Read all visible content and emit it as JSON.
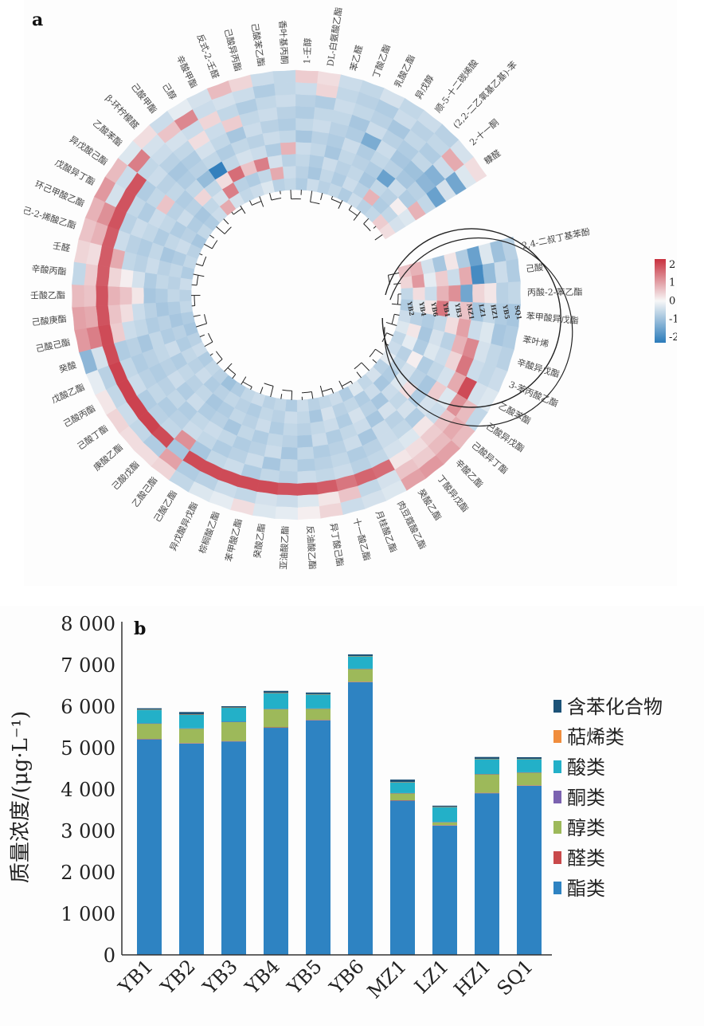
{
  "chart_data": [
    {
      "panel": "a",
      "type": "heatmap",
      "layout": "circular",
      "title": "",
      "samples_inner_to_outer": [
        "YB2",
        "YB4",
        "YB6",
        "YB1",
        "YB3",
        "MZ1",
        "LZ1",
        "HZ1",
        "YB5",
        "SQ1"
      ],
      "rows_clockwise": [
        "2,4-二叔丁基苯酚",
        "己酸",
        "丙酸-2-苯乙酯",
        "苯甲酸异戊酯",
        "苯叶烯",
        "辛酸异戊酯",
        "3-苯丙酸乙酯",
        "乙酸苯酯",
        "己酸异戊酯",
        "己酸异丁酯",
        "辛酸乙酯",
        "丁酸异戊酯",
        "癸酸乙酯",
        "肉豆蔻酸乙酯",
        "月桂酸乙酯",
        "十一酸乙酯",
        "异丁酸己酯",
        "反油酸乙酯",
        "亚油酸乙酯",
        "癸酸乙酯",
        "苯甲酸乙酯",
        "棕榈酸乙酯",
        "异戊酸异戊酯",
        "己酸乙酯",
        "乙酸己酯",
        "己酸戊酯",
        "庚酸乙酯",
        "己酸丁酯",
        "己酸丙酯",
        "戊酸乙酯",
        "癸酸",
        "己酸己酯",
        "己酸庚酯",
        "壬酸乙酯",
        "辛酸丙酯",
        "壬醛",
        "己-2-烯酸乙酯",
        "环己甲酸乙酯",
        "戊酸异丁酯",
        "异戊酸己酯",
        "乙酸苯酯",
        "β-环柠檬醛",
        "己酸甲酯",
        "己醇",
        "辛酸甲酯",
        "反式-2-壬醛",
        "己酸异丙酯",
        "己酸苯乙酯",
        "香叶基丙酮",
        "1-壬醇",
        "DL-白氨酸乙酯",
        "苯乙醛",
        "丁酸乙酯",
        "乳酸乙酯",
        "异戊醇",
        "顺-5-十二碳烯酸",
        "(2,2-二乙氧基乙基)-苯",
        "2-十一酮",
        "糠醛"
      ],
      "colorbar": {
        "ticks": [
          2,
          1,
          0,
          -1,
          -2
        ],
        "range": [
          -2.3,
          2.3
        ],
        "low_color": "#2b7bba",
        "mid_color": "#f7f7f7",
        "high_color": "#c8313f"
      },
      "dendrogram": "hierarchical clustering of compounds (inner ring)"
    },
    {
      "panel": "b",
      "type": "bar",
      "stacked": true,
      "title": "",
      "xlabel": "",
      "ylabel": "质量浓度/(μg·L⁻¹)",
      "ylim": [
        0,
        8000
      ],
      "yticks": [
        0,
        1000,
        2000,
        3000,
        4000,
        5000,
        6000,
        7000,
        8000
      ],
      "ytick_labels": [
        "0",
        "1 000",
        "2 000",
        "3 000",
        "4 000",
        "5 000",
        "6 000",
        "7 000",
        "8 000"
      ],
      "categories": [
        "YB1",
        "YB2",
        "YB3",
        "YB4",
        "YB5",
        "YB6",
        "MZ1",
        "LZ1",
        "HZ1",
        "SQ1"
      ],
      "legend_position": "right",
      "series": [
        {
          "name": "酯类",
          "color": "#2e83c2",
          "values": [
            5200,
            5100,
            5150,
            5480,
            5660,
            6580,
            3720,
            3120,
            3900,
            4080
          ]
        },
        {
          "name": "醛类",
          "color": "#c9494b",
          "values": [
            10,
            10,
            10,
            10,
            10,
            10,
            10,
            10,
            10,
            10
          ]
        },
        {
          "name": "醇类",
          "color": "#9db95a",
          "values": [
            370,
            350,
            460,
            440,
            270,
            310,
            170,
            70,
            450,
            310
          ]
        },
        {
          "name": "酮类",
          "color": "#7b62b0",
          "values": [
            5,
            5,
            5,
            5,
            5,
            5,
            5,
            5,
            5,
            5
          ]
        },
        {
          "name": "酸类",
          "color": "#23b0c8",
          "values": [
            330,
            330,
            340,
            380,
            340,
            300,
            260,
            360,
            360,
            320
          ]
        },
        {
          "name": "萜烯类",
          "color": "#f08d3d",
          "values": [
            5,
            5,
            5,
            5,
            5,
            5,
            5,
            5,
            5,
            5
          ]
        },
        {
          "name": "含苯化合物",
          "color": "#1c5277",
          "values": [
            30,
            60,
            30,
            50,
            40,
            40,
            60,
            30,
            45,
            40
          ]
        }
      ],
      "legend_order": [
        "含苯化合物",
        "萜烯类",
        "酸类",
        "酮类",
        "醇类",
        "醛类",
        "酯类"
      ]
    }
  ],
  "panels": {
    "a_letter": "a",
    "b_letter": "b"
  },
  "heatmap_values": [
    [
      0.6,
      0.8,
      -0.4,
      -0.9,
      0.2,
      -0.8,
      -1.6,
      -0.3,
      -1.0,
      -0.7
    ],
    [
      0.4,
      1.1,
      -0.2,
      0.5,
      -0.5,
      0.9,
      -2.0,
      -1.1,
      -0.5,
      -0.8
    ],
    [
      -0.6,
      0.3,
      -0.5,
      0.8,
      1.2,
      -1.5,
      0.4,
      0.2,
      -0.7,
      -0.6
    ],
    [
      -0.8,
      -0.3,
      0.2,
      1.5,
      -0.4,
      0.6,
      -0.9,
      -0.6,
      -0.8,
      -0.9
    ],
    [
      -0.5,
      -0.7,
      -0.8,
      -0.6,
      0.3,
      1.0,
      -0.5,
      -0.3,
      -0.9,
      -0.8
    ],
    [
      -0.3,
      0.2,
      -0.9,
      -0.4,
      -0.7,
      0.8,
      1.3,
      -0.4,
      -0.6,
      -0.7
    ],
    [
      -0.6,
      -0.2,
      -0.8,
      -0.3,
      -0.5,
      0.4,
      1.5,
      -0.5,
      -0.6,
      -0.5
    ],
    [
      -0.5,
      -0.7,
      0.1,
      -0.8,
      -0.6,
      -0.4,
      0.9,
      2.0,
      -0.4,
      -0.3
    ],
    [
      -0.2,
      -0.6,
      -0.4,
      -0.7,
      -0.9,
      0.5,
      -0.3,
      1.2,
      0.7,
      -0.6
    ],
    [
      -0.7,
      -0.8,
      -0.3,
      0.3,
      -0.8,
      -0.4,
      -0.5,
      0.6,
      0.9,
      0.7
    ],
    [
      -0.4,
      -0.9,
      -0.5,
      -0.6,
      -0.4,
      -0.8,
      0.2,
      0.5,
      0.7,
      1.0
    ],
    [
      -0.6,
      -0.5,
      -0.9,
      -0.4,
      -0.7,
      -0.6,
      -0.3,
      0.3,
      0.5,
      1.1
    ],
    [
      -0.3,
      -0.8,
      -0.7,
      -0.9,
      -0.5,
      -0.5,
      -0.4,
      0.2,
      0.6,
      1.0
    ],
    [
      -0.8,
      -0.6,
      -0.4,
      -0.5,
      -0.9,
      -0.7,
      -0.6,
      1.6,
      -0.4,
      -0.3
    ],
    [
      -0.5,
      -0.7,
      -0.8,
      -0.6,
      -0.5,
      -0.8,
      -0.7,
      1.7,
      -0.6,
      -0.4
    ],
    [
      -0.6,
      -0.4,
      -0.5,
      -0.8,
      -0.7,
      -0.6,
      -0.5,
      1.5,
      0.6,
      -0.5
    ],
    [
      -0.7,
      -0.9,
      -0.6,
      -0.5,
      -0.8,
      -0.7,
      -0.6,
      1.8,
      0.2,
      0.4
    ],
    [
      -0.5,
      -0.6,
      -0.7,
      -0.9,
      -0.6,
      -0.8,
      -0.5,
      1.9,
      -0.3,
      0.1
    ],
    [
      -0.8,
      -0.5,
      -0.6,
      -0.7,
      -0.9,
      -0.6,
      -0.7,
      1.9,
      -0.5,
      -0.2
    ],
    [
      -0.6,
      -0.7,
      -0.8,
      -0.6,
      -0.5,
      -0.9,
      -0.6,
      2.0,
      -0.4,
      -0.3
    ],
    [
      -0.7,
      -0.6,
      -0.5,
      -0.8,
      -0.7,
      -0.5,
      -0.8,
      2.0,
      -0.6,
      0.3
    ],
    [
      -0.5,
      -0.8,
      -0.7,
      -0.6,
      -0.8,
      -0.7,
      -0.5,
      2.0,
      -0.5,
      -0.2
    ],
    [
      -0.6,
      -0.7,
      -0.6,
      -0.9,
      -0.6,
      -0.8,
      -0.6,
      2.0,
      -0.7,
      -0.3
    ],
    [
      -0.8,
      -0.6,
      -0.8,
      -0.7,
      -0.5,
      -0.6,
      -0.9,
      2.0,
      -0.8,
      -0.6
    ],
    [
      -1.0,
      -0.7,
      -0.9,
      -0.8,
      -0.6,
      -0.5,
      1.2,
      -0.9,
      1.0,
      0.4
    ],
    [
      -0.7,
      -0.8,
      -0.6,
      -0.5,
      -0.8,
      -0.7,
      -0.6,
      2.0,
      -0.8,
      0.3
    ],
    [
      -0.6,
      -0.5,
      -0.7,
      -0.8,
      -0.6,
      -0.8,
      -0.7,
      2.1,
      -0.6,
      0.3
    ],
    [
      -0.8,
      -0.7,
      -0.6,
      -0.5,
      -0.7,
      -0.6,
      -0.8,
      2.1,
      -0.5,
      0.4
    ],
    [
      -0.5,
      -0.6,
      -0.8,
      -0.7,
      -0.8,
      -0.7,
      -0.5,
      2.1,
      -0.6,
      0.2
    ],
    [
      -0.7,
      -0.8,
      -0.5,
      -0.6,
      -0.7,
      -0.8,
      -0.6,
      2.1,
      -0.7,
      -0.2
    ],
    [
      -0.9,
      -0.7,
      -0.8,
      -0.6,
      -0.9,
      -0.7,
      -0.8,
      2.0,
      -0.4,
      -1.2
    ],
    [
      -0.8,
      -0.9,
      -0.7,
      -0.8,
      -0.6,
      -0.5,
      0.5,
      2.0,
      1.4,
      1.1
    ],
    [
      -0.6,
      -0.8,
      -0.9,
      -0.7,
      -0.5,
      0.3,
      0.6,
      1.9,
      0.9,
      1.0
    ],
    [
      -0.7,
      -0.6,
      -0.8,
      -0.9,
      0.2,
      0.6,
      0.8,
      1.9,
      0.6,
      0.7
    ],
    [
      -0.5,
      -0.7,
      -0.6,
      -0.8,
      -0.4,
      0.1,
      0.4,
      1.8,
      0.5,
      -0.6
    ],
    [
      -0.8,
      -0.6,
      -0.7,
      -0.5,
      -0.7,
      -0.6,
      0.9,
      1.8,
      0.3,
      0.4
    ],
    [
      -0.6,
      -0.8,
      -0.9,
      -0.6,
      -0.8,
      -0.7,
      -0.5,
      1.8,
      0.8,
      0.6
    ],
    [
      -0.7,
      -0.5,
      -0.6,
      -0.8,
      -0.6,
      -0.5,
      -0.7,
      1.9,
      1.2,
      0.8
    ],
    [
      -0.9,
      -0.7,
      -0.8,
      -0.6,
      -0.5,
      -0.8,
      -0.6,
      1.9,
      -0.4,
      1.1
    ],
    [
      -0.6,
      -0.8,
      -0.5,
      -0.7,
      0.6,
      -0.6,
      -0.8,
      1.9,
      -0.5,
      0.7
    ],
    [
      -0.8,
      -0.9,
      -0.7,
      -0.8,
      -0.6,
      -0.7,
      -0.5,
      -0.6,
      1.4,
      -0.3
    ],
    [
      -0.5,
      -0.6,
      0.4,
      -0.6,
      -0.8,
      -0.9,
      -0.7,
      -0.5,
      -0.4,
      0.3
    ],
    [
      0.9,
      -0.4,
      -0.6,
      -1.1,
      -0.7,
      -0.8,
      -0.6,
      -0.4,
      0.6,
      -0.5
    ],
    [
      -0.4,
      1.4,
      0.3,
      -2.2,
      -0.6,
      -0.4,
      0.3,
      -0.5,
      1.3,
      -0.2
    ],
    [
      -0.6,
      -0.7,
      1.6,
      -0.6,
      -0.8,
      -0.6,
      -0.5,
      0.4,
      -0.5,
      -0.4
    ],
    [
      -0.5,
      -0.8,
      0.6,
      -0.4,
      -0.6,
      -0.9,
      0.5,
      -0.6,
      -0.4,
      0.7
    ],
    [
      -0.3,
      -0.6,
      1.4,
      -0.5,
      -0.7,
      -0.5,
      -0.6,
      -0.8,
      -0.5,
      0.4
    ],
    [
      -0.7,
      0.9,
      -0.4,
      -0.8,
      -0.5,
      -0.7,
      -0.5,
      -0.6,
      -0.8,
      -0.5
    ],
    [
      -0.6,
      -0.5,
      -0.7,
      0.8,
      -0.6,
      -0.8,
      -0.7,
      -0.5,
      -0.6,
      -0.6
    ],
    [
      -0.8,
      -0.7,
      -0.6,
      -0.5,
      -0.9,
      -0.6,
      -0.8,
      -0.7,
      -0.5,
      0.5
    ],
    [
      -0.5,
      -0.9,
      -0.8,
      -0.6,
      -0.7,
      -0.5,
      -0.6,
      -0.8,
      0.4,
      0.3
    ],
    [
      -0.7,
      -0.6,
      -0.5,
      -0.9,
      -0.8,
      -0.7,
      -0.6,
      -0.5,
      -0.6,
      -0.5
    ],
    [
      -0.6,
      -0.8,
      -0.7,
      -0.6,
      -0.5,
      -0.8,
      -0.9,
      -0.6,
      -0.7,
      -0.6
    ],
    [
      -0.8,
      -0.5,
      -0.6,
      -0.7,
      -0.8,
      -1.4,
      -0.5,
      -0.7,
      -0.8,
      -0.4
    ],
    [
      -0.5,
      -0.7,
      -0.9,
      -0.8,
      -0.6,
      -0.5,
      -0.7,
      -0.9,
      -0.5,
      -0.6
    ],
    [
      -0.7,
      0.8,
      -0.6,
      -1.6,
      -0.7,
      -0.9,
      -0.8,
      -0.6,
      -0.7,
      -0.5
    ],
    [
      -0.6,
      -0.8,
      -0.7,
      -0.5,
      -0.9,
      -1.0,
      -0.6,
      -0.8,
      -0.6,
      -0.7
    ],
    [
      0.5,
      -0.6,
      0.1,
      -0.8,
      -0.7,
      -1.2,
      -1.3,
      -0.5,
      0.9,
      -0.4
    ],
    [
      0.3,
      -0.4,
      -0.3,
      0.8,
      -0.6,
      -1.6,
      -0.4,
      -1.5,
      -0.3,
      0.3
    ]
  ]
}
